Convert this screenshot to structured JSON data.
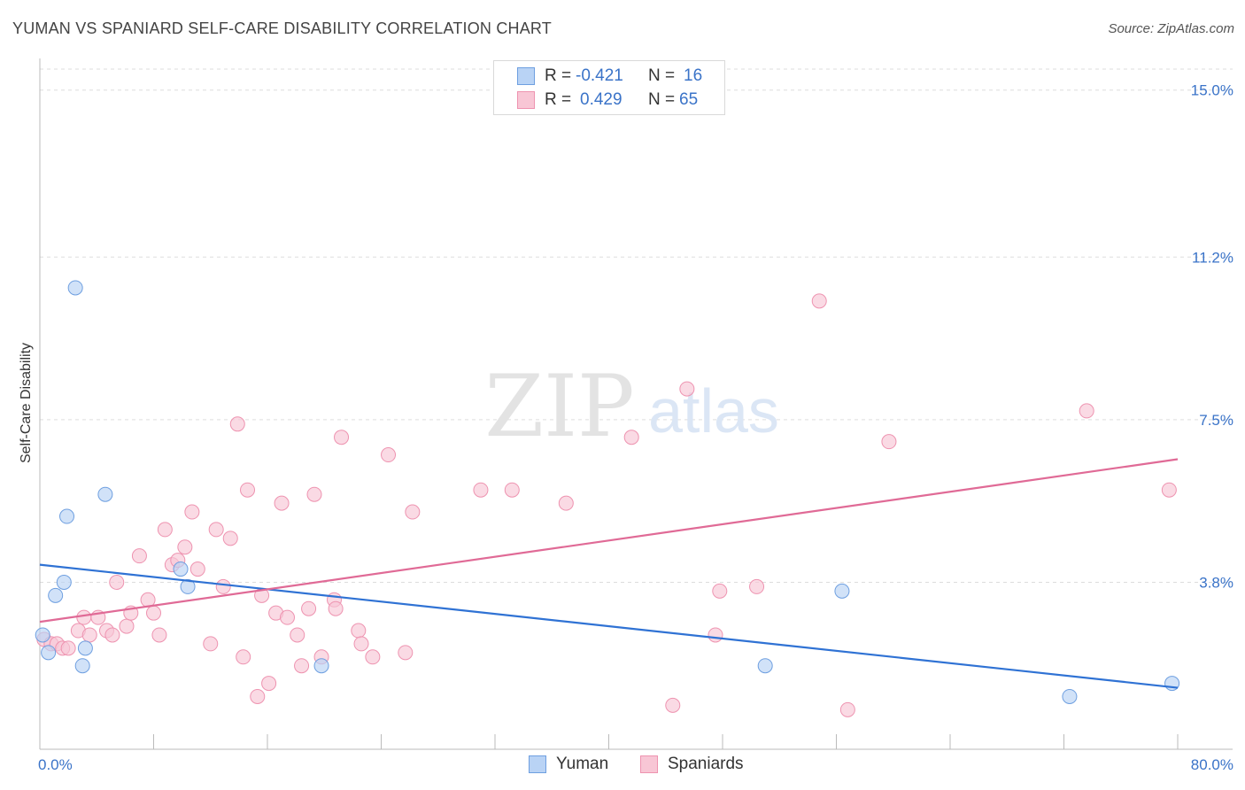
{
  "header": {
    "title": "YUMAN VS SPANIARD SELF-CARE DISABILITY CORRELATION CHART",
    "source": "Source: ZipAtlas.com"
  },
  "watermark": {
    "zip": "ZIP",
    "atlas": "atlas"
  },
  "legend_box": {
    "rows": [
      {
        "r_label": "R =",
        "r_value": "-0.421",
        "n_label": "N =",
        "n_value": "16"
      },
      {
        "r_label": "R =",
        "r_value": "0.429",
        "n_label": "N =",
        "n_value": "65"
      }
    ]
  },
  "colors": {
    "yuman_fill": "#b9d3f5",
    "yuman_stroke": "#6e9fe0",
    "yuman_line": "#2f72d4",
    "spaniard_fill": "#f8c6d5",
    "spaniard_stroke": "#ee93b0",
    "spaniard_line": "#e06a96",
    "tick_label": "#3a73c8",
    "grid": "#dddddd"
  },
  "chart_data": {
    "type": "scatter",
    "title": "YUMAN VS SPANIARD SELF-CARE DISABILITY CORRELATION CHART",
    "xlabel": "",
    "ylabel": "Self-Care Disability",
    "xlim": [
      0,
      80
    ],
    "ylim": [
      0,
      15.8
    ],
    "x_tick_labels": [
      "0.0%",
      "80.0%"
    ],
    "y_ticks": [
      3.8,
      7.5,
      11.2,
      15.0
    ],
    "y_tick_labels": [
      "3.8%",
      "7.5%",
      "11.2%",
      "15.0%"
    ],
    "legend_position": "bottom-center",
    "series": [
      {
        "name": "Yuman",
        "r": -0.421,
        "n": 16,
        "trend": {
          "x": [
            0,
            80
          ],
          "y": [
            4.2,
            1.4
          ]
        },
        "points": [
          {
            "x": 0.2,
            "y": 2.6
          },
          {
            "x": 0.6,
            "y": 2.2
          },
          {
            "x": 1.1,
            "y": 3.5
          },
          {
            "x": 1.7,
            "y": 3.8
          },
          {
            "x": 1.9,
            "y": 5.3
          },
          {
            "x": 2.5,
            "y": 10.5
          },
          {
            "x": 3.0,
            "y": 1.9
          },
          {
            "x": 3.2,
            "y": 2.3
          },
          {
            "x": 4.6,
            "y": 5.8
          },
          {
            "x": 9.9,
            "y": 4.1
          },
          {
            "x": 10.4,
            "y": 3.7
          },
          {
            "x": 19.8,
            "y": 1.9
          },
          {
            "x": 51.0,
            "y": 1.9
          },
          {
            "x": 56.4,
            "y": 3.6
          },
          {
            "x": 72.4,
            "y": 1.2
          },
          {
            "x": 79.6,
            "y": 1.5
          }
        ]
      },
      {
        "name": "Spaniards",
        "r": 0.429,
        "n": 65,
        "trend": {
          "x": [
            0,
            80
          ],
          "y": [
            2.9,
            6.6
          ]
        },
        "points": [
          {
            "x": 0.3,
            "y": 2.5
          },
          {
            "x": 0.8,
            "y": 2.4
          },
          {
            "x": 1.2,
            "y": 2.4
          },
          {
            "x": 1.6,
            "y": 2.3
          },
          {
            "x": 2.0,
            "y": 2.3
          },
          {
            "x": 2.7,
            "y": 2.7
          },
          {
            "x": 3.1,
            "y": 3.0
          },
          {
            "x": 3.5,
            "y": 2.6
          },
          {
            "x": 4.1,
            "y": 3.0
          },
          {
            "x": 4.7,
            "y": 2.7
          },
          {
            "x": 5.1,
            "y": 2.6
          },
          {
            "x": 5.4,
            "y": 3.8
          },
          {
            "x": 6.1,
            "y": 2.8
          },
          {
            "x": 6.4,
            "y": 3.1
          },
          {
            "x": 7.0,
            "y": 4.4
          },
          {
            "x": 7.6,
            "y": 3.4
          },
          {
            "x": 8.0,
            "y": 3.1
          },
          {
            "x": 8.4,
            "y": 2.6
          },
          {
            "x": 8.8,
            "y": 5.0
          },
          {
            "x": 9.3,
            "y": 4.2
          },
          {
            "x": 9.7,
            "y": 4.3
          },
          {
            "x": 10.2,
            "y": 4.6
          },
          {
            "x": 10.7,
            "y": 5.4
          },
          {
            "x": 11.1,
            "y": 4.1
          },
          {
            "x": 12.0,
            "y": 2.4
          },
          {
            "x": 12.4,
            "y": 5.0
          },
          {
            "x": 12.9,
            "y": 3.7
          },
          {
            "x": 13.4,
            "y": 4.8
          },
          {
            "x": 13.9,
            "y": 7.4
          },
          {
            "x": 14.3,
            "y": 2.1
          },
          {
            "x": 14.6,
            "y": 5.9
          },
          {
            "x": 15.3,
            "y": 1.2
          },
          {
            "x": 15.6,
            "y": 3.5
          },
          {
            "x": 16.1,
            "y": 1.5
          },
          {
            "x": 16.6,
            "y": 3.1
          },
          {
            "x": 17.0,
            "y": 5.6
          },
          {
            "x": 17.4,
            "y": 3.0
          },
          {
            "x": 18.1,
            "y": 2.6
          },
          {
            "x": 18.4,
            "y": 1.9
          },
          {
            "x": 18.9,
            "y": 3.2
          },
          {
            "x": 19.3,
            "y": 5.8
          },
          {
            "x": 19.8,
            "y": 2.1
          },
          {
            "x": 20.7,
            "y": 3.4
          },
          {
            "x": 21.2,
            "y": 7.1
          },
          {
            "x": 22.4,
            "y": 2.7
          },
          {
            "x": 22.6,
            "y": 2.4
          },
          {
            "x": 23.4,
            "y": 2.1
          },
          {
            "x": 24.5,
            "y": 6.7
          },
          {
            "x": 25.7,
            "y": 2.2
          },
          {
            "x": 26.2,
            "y": 5.4
          },
          {
            "x": 31.0,
            "y": 5.9
          },
          {
            "x": 33.2,
            "y": 5.9
          },
          {
            "x": 37.0,
            "y": 5.6
          },
          {
            "x": 41.6,
            "y": 7.1
          },
          {
            "x": 44.5,
            "y": 1.0
          },
          {
            "x": 45.5,
            "y": 8.2
          },
          {
            "x": 47.5,
            "y": 2.6
          },
          {
            "x": 47.8,
            "y": 3.6
          },
          {
            "x": 50.4,
            "y": 3.7
          },
          {
            "x": 54.8,
            "y": 10.2
          },
          {
            "x": 56.8,
            "y": 0.9
          },
          {
            "x": 59.7,
            "y": 7.0
          },
          {
            "x": 73.6,
            "y": 7.7
          },
          {
            "x": 79.4,
            "y": 5.9
          },
          {
            "x": 20.8,
            "y": 3.2
          }
        ]
      }
    ]
  }
}
